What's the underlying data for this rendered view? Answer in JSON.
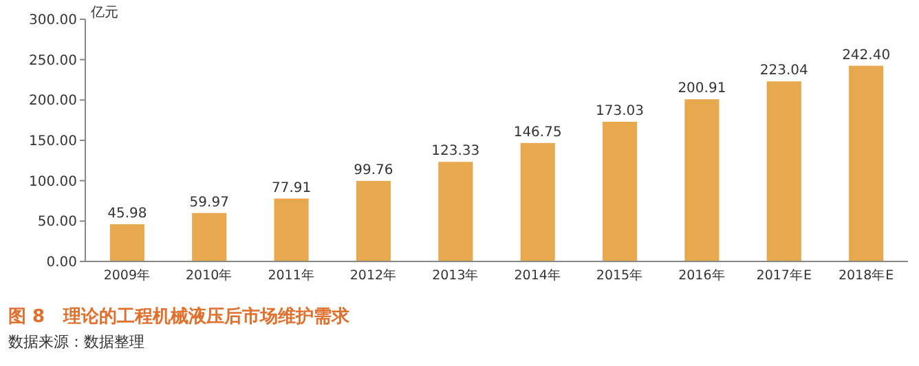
{
  "chart_data": {
    "type": "bar",
    "title": "图 8   理论的工程机械液压后市场维护需求",
    "ylabel": "亿元",
    "annotations": [
      "数据来源：数据整理"
    ],
    "categories": [
      "2009年",
      "2010年",
      "2011年",
      "2012年",
      "2013年",
      "2014年",
      "2015年",
      "2016年",
      "2017年E",
      "2018年E"
    ],
    "values": [
      45.98,
      59.97,
      77.91,
      99.76,
      123.33,
      146.75,
      173.03,
      200.91,
      223.04,
      242.4
    ],
    "value_labels": [
      "45.98",
      "59.97",
      "77.91",
      "99.76",
      "123.33",
      "146.75",
      "173.03",
      "200.91",
      "223.04",
      "242.40"
    ],
    "color": "#e8a84e",
    "ylim": [
      0,
      300
    ],
    "yticks": [
      {
        "value": 0,
        "label": "0.00"
      },
      {
        "value": 50,
        "label": "50.00"
      },
      {
        "value": 100,
        "label": "100.00"
      },
      {
        "value": 150,
        "label": "150.00"
      },
      {
        "value": 200,
        "label": "200.00"
      },
      {
        "value": 250,
        "label": "250.00"
      },
      {
        "value": 300,
        "label": "300.00"
      }
    ],
    "grid": false
  }
}
